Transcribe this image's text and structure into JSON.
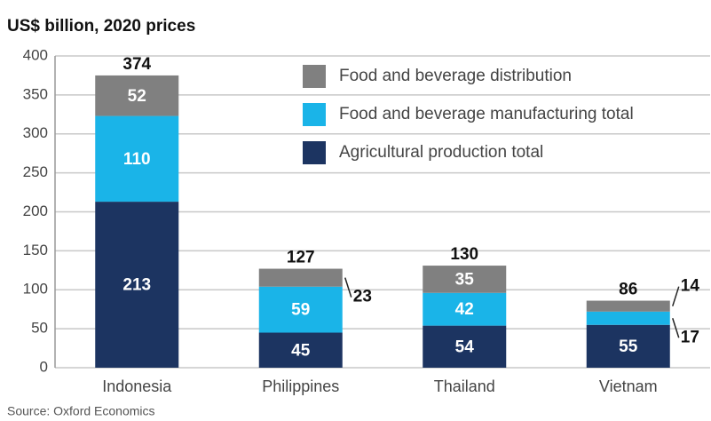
{
  "chart_data": {
    "type": "stacked_bar",
    "title": "US$ billion, 2020 prices",
    "source": "Source: Oxford Economics",
    "categories": [
      "Indonesia",
      "Philippines",
      "Thailand",
      "Vietnam"
    ],
    "series": [
      {
        "name": "Agricultural production total",
        "color": "#1c3461",
        "values": [
          213,
          45,
          54,
          55
        ]
      },
      {
        "name": "Food and beverage manufacturing total",
        "color": "#1ab4e8",
        "values": [
          110,
          59,
          42,
          17
        ]
      },
      {
        "name": "Food and beverage distribution",
        "color": "#808080",
        "values": [
          52,
          23,
          35,
          14
        ]
      }
    ],
    "totals": [
      374,
      127,
      130,
      86
    ],
    "ylim": [
      0,
      400
    ],
    "yticks": [
      0,
      50,
      100,
      150,
      200,
      250,
      300,
      350,
      400
    ],
    "grid": true
  }
}
